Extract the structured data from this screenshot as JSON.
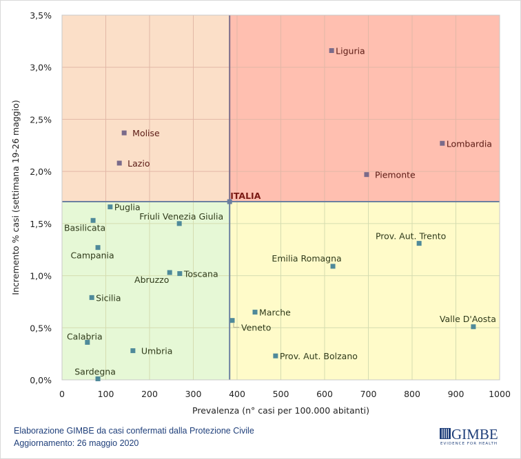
{
  "chart_data": {
    "type": "scatter",
    "title": "",
    "xlabel": "Prevalenza  (n° casi per 100.000 abitanti)",
    "ylabel": "Incremento %  casi (settimana 19-26 maggio)",
    "xlim": [
      0,
      1000
    ],
    "ylim": [
      0,
      3.5
    ],
    "x_ticks": [
      "0",
      "100",
      "200",
      "300",
      "400",
      "500",
      "600",
      "700",
      "800",
      "900",
      "1000"
    ],
    "y_ticks": [
      "0,0%",
      "0,5%",
      "1,0%",
      "1,5%",
      "2,0%",
      "2,5%",
      "3,0%",
      "3,5%"
    ],
    "grid": true,
    "reference": {
      "name": "ITALIA",
      "x": 383,
      "y": 1.71
    },
    "quadrant_colors": {
      "top_left": "#fbdfc8",
      "top_right": "#ffbfb0",
      "bottom_left": "#e6f8d6",
      "bottom_right": "#fffbc9"
    },
    "points": [
      {
        "name": "Liguria",
        "x": 616,
        "y": 3.16,
        "quadrant": "top_right",
        "label_pos": "right"
      },
      {
        "name": "Lombardia",
        "x": 869,
        "y": 2.27,
        "quadrant": "top_right",
        "label_pos": "right"
      },
      {
        "name": "Piemonte",
        "x": 696,
        "y": 1.97,
        "quadrant": "top_right",
        "label_pos": "right-far"
      },
      {
        "name": "Molise",
        "x": 142,
        "y": 2.37,
        "quadrant": "top_left",
        "label_pos": "right-far"
      },
      {
        "name": "Lazio",
        "x": 131,
        "y": 2.08,
        "quadrant": "top_left",
        "label_pos": "right-far"
      },
      {
        "name": "Puglia",
        "x": 110,
        "y": 1.66,
        "quadrant": "bottom_left",
        "label_pos": "right"
      },
      {
        "name": "Basilicata",
        "x": 71,
        "y": 1.53,
        "quadrant": "bottom_left",
        "label_pos": "below"
      },
      {
        "name": "Friuli Venezia Giulia",
        "x": 268,
        "y": 1.5,
        "quadrant": "bottom_left",
        "label_pos": "above"
      },
      {
        "name": "Campania",
        "x": 82,
        "y": 1.27,
        "quadrant": "bottom_left",
        "label_pos": "below"
      },
      {
        "name": "Abruzzo",
        "x": 246,
        "y": 1.03,
        "quadrant": "bottom_left",
        "label_pos": "below-left"
      },
      {
        "name": "Toscana",
        "x": 269,
        "y": 1.02,
        "quadrant": "bottom_left",
        "label_pos": "right"
      },
      {
        "name": "Sicilia",
        "x": 68,
        "y": 0.79,
        "quadrant": "bottom_left",
        "label_pos": "right"
      },
      {
        "name": "Calabria",
        "x": 58,
        "y": 0.36,
        "quadrant": "bottom_left",
        "label_pos": "above"
      },
      {
        "name": "Umbria",
        "x": 162,
        "y": 0.28,
        "quadrant": "bottom_left",
        "label_pos": "right-far"
      },
      {
        "name": "Sardegna",
        "x": 82,
        "y": 0.01,
        "quadrant": "bottom_left",
        "label_pos": "above"
      },
      {
        "name": "Veneto",
        "x": 389,
        "y": 0.57,
        "quadrant": "bottom_right",
        "label_pos": "leader"
      },
      {
        "name": "Marche",
        "x": 441,
        "y": 0.65,
        "quadrant": "bottom_right",
        "label_pos": "right"
      },
      {
        "name": "Prov. Aut. Bolzano",
        "x": 488,
        "y": 0.23,
        "quadrant": "bottom_right",
        "label_pos": "right"
      },
      {
        "name": "Emilia Romagna",
        "x": 619,
        "y": 1.09,
        "quadrant": "bottom_right",
        "label_pos": "above"
      },
      {
        "name": "Prov. Aut. Trento",
        "x": 816,
        "y": 1.31,
        "quadrant": "bottom_right",
        "label_pos": "above"
      },
      {
        "name": "Valle D'Aosta",
        "x": 940,
        "y": 0.51,
        "quadrant": "bottom_right",
        "label_pos": "above"
      }
    ]
  },
  "colors": {
    "marker_top": "#7a6b8a",
    "marker_bottom": "#4f8a9a",
    "label_top": "#5a1a14",
    "label_bottom": "#2f3a1a",
    "italia_label": "#7a1a14",
    "ref_line_vertical": "#7a6b8a",
    "ref_line_horizontal": "#6b7fa0",
    "footer_text": "#1f3f7a"
  },
  "footer": {
    "line1": "Elaborazione GIMBE da casi confermati dalla Protezione Civile",
    "line2": "Aggiornamento: 26 maggio 2020"
  },
  "logo": {
    "name": "GIMBE",
    "tagline": "EVIDENCE FOR HEALTH"
  }
}
